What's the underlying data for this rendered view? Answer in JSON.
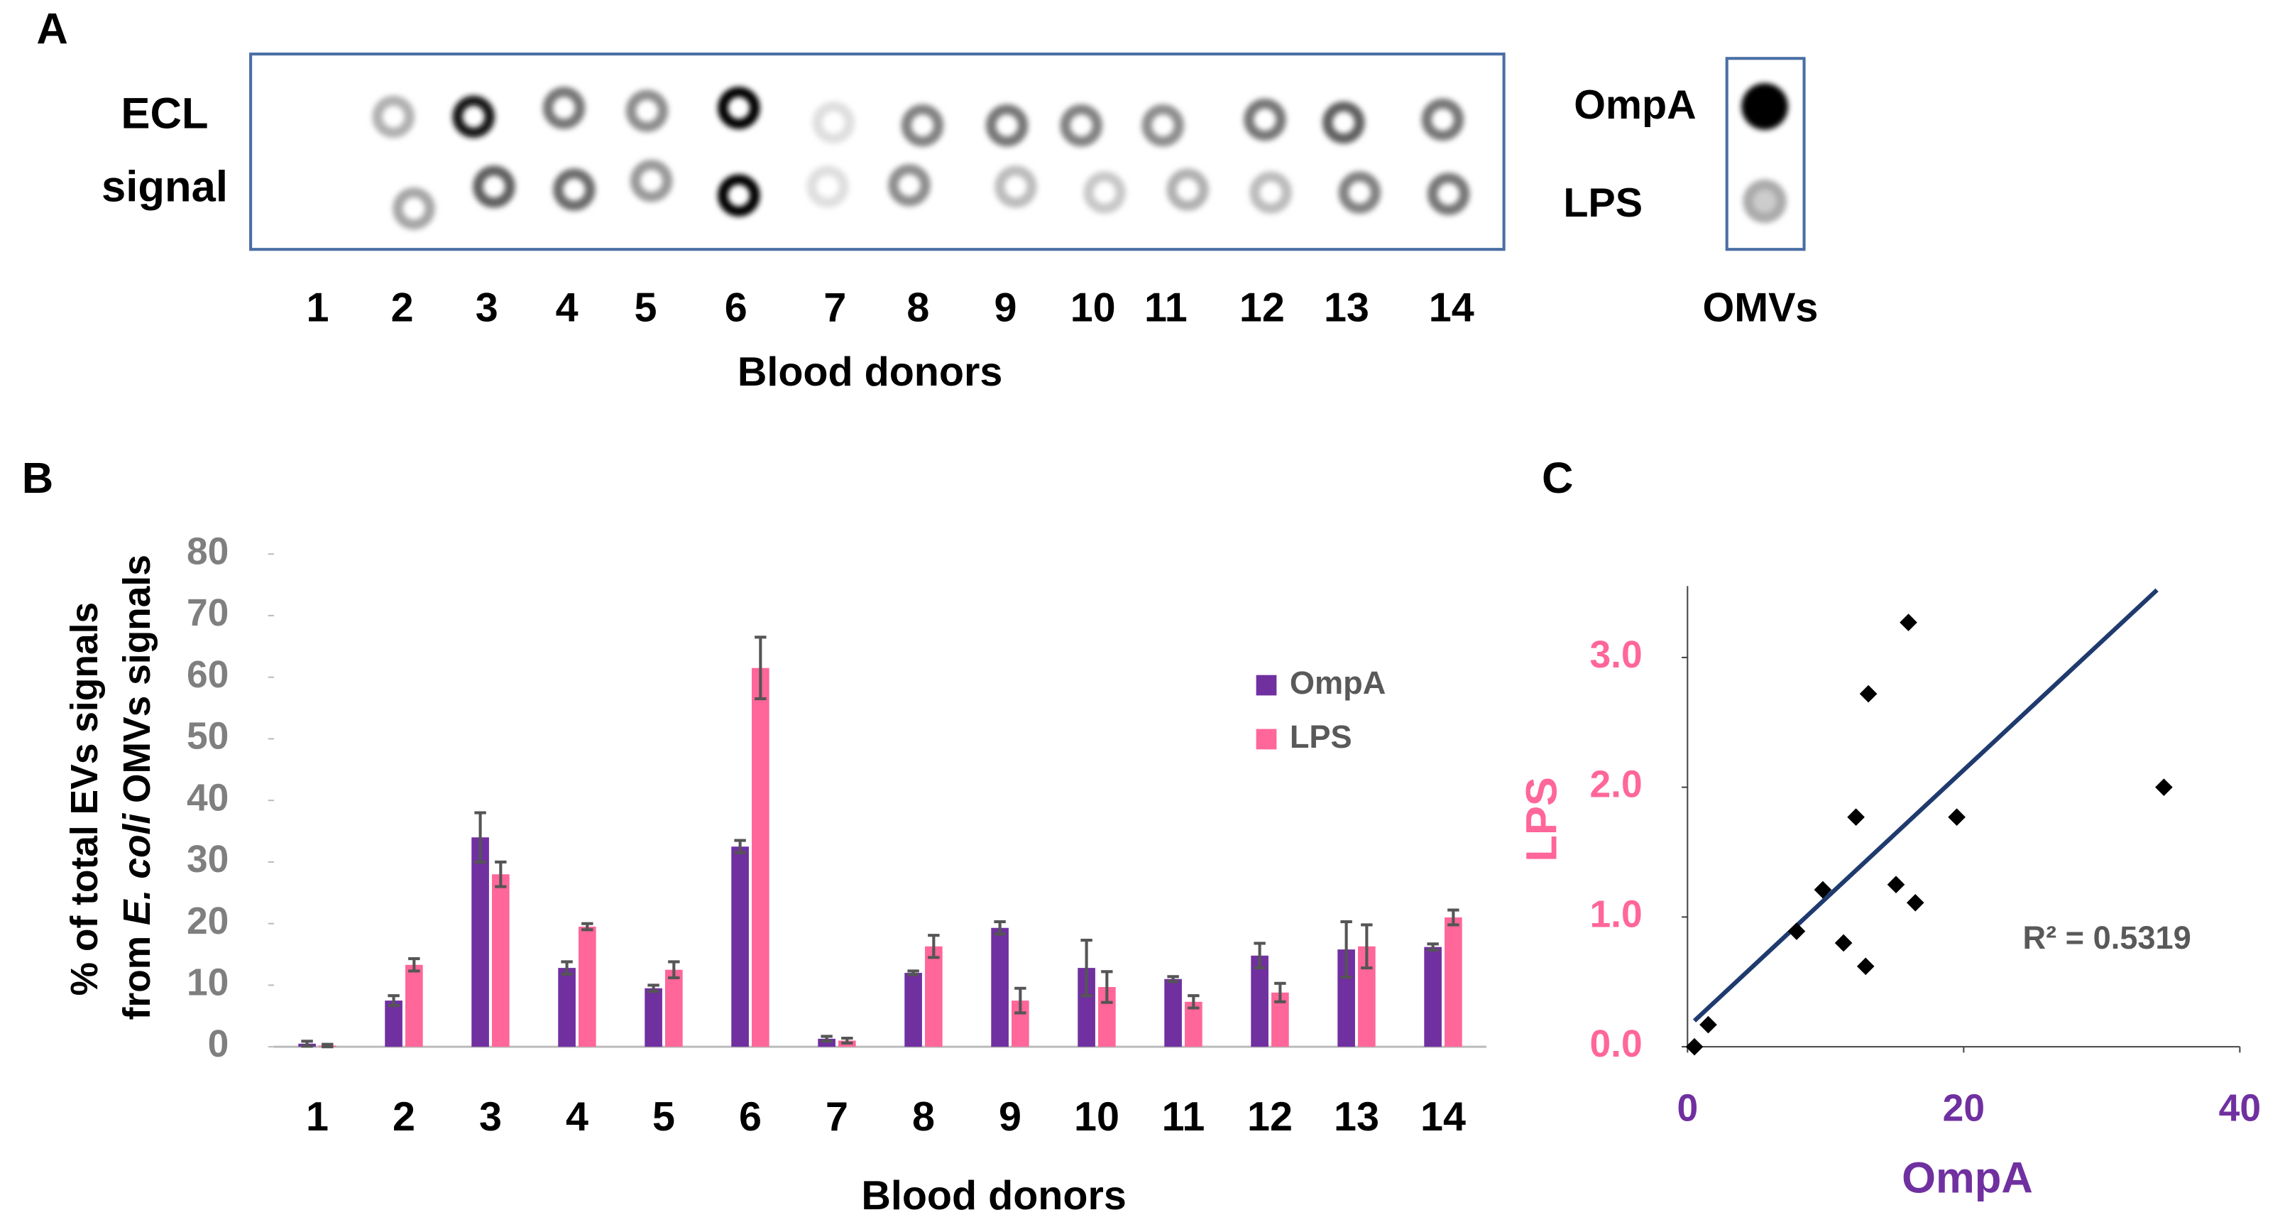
{
  "panel_labels": [
    "A",
    "B",
    "C"
  ],
  "blot": {
    "row_label_1": "ECL",
    "row_label_2": "signal",
    "donors": [
      "1",
      "2",
      "3",
      "4",
      "5",
      "6",
      "7",
      "8",
      "9",
      "10",
      "11",
      "12",
      "13",
      "14"
    ],
    "xlabel": "Blood donors",
    "control_labels": [
      "OmpA",
      "LPS"
    ],
    "control_caption": "OMVs"
  },
  "chart_data": [
    {
      "type": "bar",
      "ylabel": {
        "line1": "% of total EVs signals",
        "line2_pre": "from ",
        "line2_italic": "E. coli",
        "line2_post": " OMVs signals"
      },
      "xlabel": "Blood donors",
      "categories": [
        "1",
        "2",
        "3",
        "4",
        "5",
        "6",
        "7",
        "8",
        "9",
        "10",
        "11",
        "12",
        "13",
        "14"
      ],
      "series": [
        {
          "name": "OmpA",
          "color": "#7030a0",
          "values": [
            0.5,
            7.5,
            34,
            12.8,
            9.5,
            32.5,
            1.3,
            12,
            19.3,
            12.8,
            11,
            14.8,
            15.8,
            16.2
          ],
          "errors": [
            0.4,
            0.8,
            4,
            1,
            0.5,
            1,
            0.4,
            0.3,
            1,
            4.5,
            0.4,
            2,
            4.5,
            0.5
          ]
        },
        {
          "name": "LPS",
          "color": "#ff6699",
          "values": [
            0.2,
            13.3,
            28,
            19.5,
            12.5,
            61.5,
            1,
            16.3,
            7.5,
            9.7,
            7.3,
            8.8,
            16.3,
            21
          ],
          "errors": [
            0.2,
            1,
            2,
            0.5,
            1.3,
            5,
            0.4,
            1.8,
            2,
            2.5,
            1,
            1.5,
            3.5,
            1.2
          ]
        }
      ],
      "ylim": [
        0,
        80
      ],
      "yticks": [
        0,
        10,
        20,
        30,
        40,
        50,
        60,
        70,
        80
      ],
      "legend": "right"
    },
    {
      "type": "scatter",
      "xlabel": "OmpA",
      "ylabel": "LPS",
      "color": "#000000",
      "x": [
        0.5,
        1.5,
        7.9,
        9.8,
        11.3,
        12.2,
        12.9,
        13.1,
        15.1,
        16.5,
        16.0,
        19.5,
        34.5
      ],
      "values": [
        0,
        0.17,
        0.89,
        1.21,
        0.8,
        1.77,
        0.62,
        2.72,
        1.25,
        1.11,
        3.27,
        1.77,
        2.0
      ],
      "trendline": {
        "color": "#1f3a6e",
        "x": [
          0.5,
          34
        ],
        "y": [
          0.2,
          3.52
        ]
      },
      "annotation": "R² = 0.5319",
      "xlim": [
        0,
        40
      ],
      "xticks": [
        0,
        20,
        40
      ],
      "ylim": [
        0,
        3.55
      ],
      "yticks": [
        {
          "value": 0,
          "label": "0.0"
        },
        {
          "value": 1,
          "label": "1.0"
        },
        {
          "value": 2,
          "label": "2.0"
        },
        {
          "value": 3,
          "label": "3.0"
        }
      ]
    }
  ]
}
